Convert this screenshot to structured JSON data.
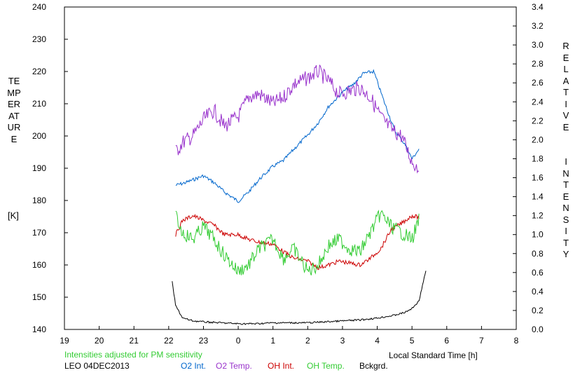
{
  "chart_data": {
    "type": "line",
    "station": "LEO 04DEC2013",
    "note": "Intensities adjusted for PM sensitivity",
    "xlabel": "Local Standard Time [h]",
    "ylabel_left": "TEMPERATURE",
    "ylabel_left_unit": "[K]",
    "ylabel_right": "RELATIVE  INTENSITY",
    "xlim": [
      19,
      32
    ],
    "x_ticks": [
      "19",
      "20",
      "21",
      "22",
      "23",
      "0",
      "1",
      "2",
      "3",
      "4",
      "5",
      "6",
      "7",
      "8"
    ],
    "ylim_left": [
      140,
      240
    ],
    "y_left_ticks": [
      "240",
      "230",
      "220",
      "210",
      "200",
      "190",
      "180",
      "170",
      "160",
      "150",
      "140"
    ],
    "ylim_right": [
      0.0,
      3.4
    ],
    "y_right_ticks": [
      "3.4",
      "3.2",
      "3.0",
      "2.8",
      "2.6",
      "2.4",
      "2.2",
      "2.0",
      "1.8",
      "1.6",
      "1.4",
      "1.2",
      "1.0",
      "0.8",
      "0.6",
      "0.4",
      "0.2",
      "0.0"
    ],
    "colors": {
      "o2_int": "#0066cc",
      "o2_temp": "#9933cc",
      "oh_int": "#cc0000",
      "oh_temp": "#33cc33",
      "bckgrd": "#000000"
    },
    "series": [
      {
        "name": "O2 Int.",
        "axis": "right",
        "x": [
          22.2,
          22.5,
          23.0,
          23.3,
          23.6,
          24.0,
          24.3,
          24.6,
          25.0,
          25.3,
          25.6,
          26.0,
          26.3,
          26.6,
          27.0,
          27.3,
          27.6,
          27.9,
          28.2,
          28.5,
          28.8,
          29.0,
          29.2
        ],
        "y": [
          1.52,
          1.55,
          1.62,
          1.55,
          1.45,
          1.35,
          1.45,
          1.58,
          1.72,
          1.78,
          1.9,
          2.05,
          2.18,
          2.35,
          2.5,
          2.58,
          2.7,
          2.72,
          2.4,
          2.1,
          1.95,
          1.8,
          1.9
        ]
      },
      {
        "name": "O2 Temp.",
        "axis": "left",
        "x": [
          22.2,
          22.4,
          22.7,
          23.0,
          23.3,
          23.6,
          24.0,
          24.3,
          24.6,
          25.0,
          25.3,
          25.6,
          26.0,
          26.3,
          26.6,
          26.9,
          27.2,
          27.5,
          27.8,
          28.1,
          28.4,
          28.7,
          29.0,
          29.2
        ],
        "y": [
          195,
          198,
          200,
          205,
          208,
          203,
          206,
          212,
          213,
          210,
          212,
          216,
          218,
          220,
          217,
          213,
          214,
          215,
          212,
          206,
          202,
          200,
          192,
          190
        ]
      },
      {
        "name": "OH Int.",
        "axis": "right",
        "x": [
          22.2,
          22.4,
          22.7,
          23.0,
          23.3,
          23.6,
          24.0,
          24.3,
          24.6,
          25.0,
          25.3,
          25.6,
          26.0,
          26.3,
          26.6,
          26.9,
          27.2,
          27.5,
          27.8,
          28.1,
          28.4,
          28.7,
          29.0,
          29.2
        ],
        "y": [
          1.0,
          1.15,
          1.2,
          1.15,
          1.1,
          1.0,
          1.0,
          0.95,
          0.92,
          0.9,
          0.82,
          0.75,
          0.72,
          0.65,
          0.68,
          0.72,
          0.7,
          0.68,
          0.75,
          0.85,
          1.05,
          1.12,
          1.2,
          1.18
        ]
      },
      {
        "name": "OH Temp.",
        "axis": "left",
        "x": [
          22.2,
          22.4,
          22.7,
          23.0,
          23.3,
          23.6,
          24.0,
          24.3,
          24.6,
          25.0,
          25.3,
          25.6,
          26.0,
          26.3,
          26.6,
          26.9,
          27.2,
          27.5,
          27.8,
          28.1,
          28.4,
          28.7,
          29.0,
          29.2
        ],
        "y": [
          175,
          170,
          168,
          172,
          168,
          163,
          158,
          160,
          165,
          168,
          162,
          165,
          158,
          160,
          166,
          168,
          165,
          164,
          170,
          176,
          172,
          170,
          168,
          174
        ]
      },
      {
        "name": "Bckgrd.",
        "axis": "right",
        "x": [
          22.1,
          22.2,
          22.4,
          22.7,
          23.0,
          23.5,
          24.0,
          24.5,
          25.0,
          25.5,
          26.0,
          26.5,
          27.0,
          27.5,
          28.0,
          28.5,
          28.8,
          29.0,
          29.2,
          29.4
        ],
        "y": [
          0.5,
          0.25,
          0.12,
          0.09,
          0.08,
          0.07,
          0.06,
          0.06,
          0.07,
          0.07,
          0.07,
          0.08,
          0.09,
          0.1,
          0.12,
          0.15,
          0.18,
          0.22,
          0.3,
          0.62
        ]
      }
    ]
  }
}
